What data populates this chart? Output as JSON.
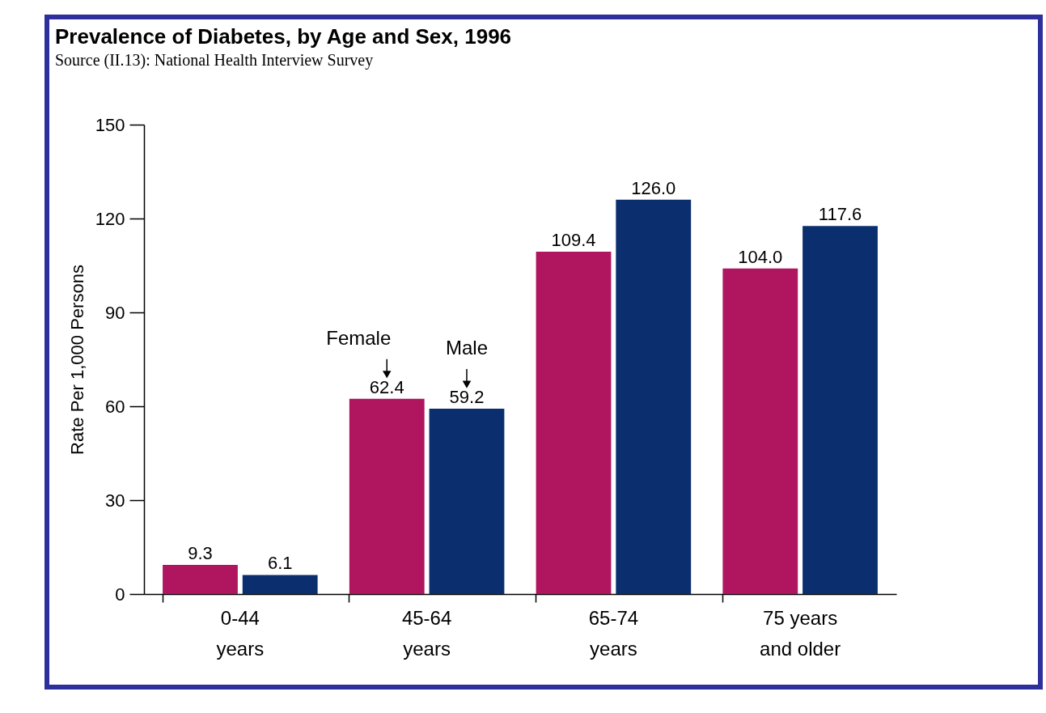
{
  "chart_data": {
    "type": "bar",
    "title": "Prevalence of Diabetes, by Age and Sex, 1996",
    "subtitle": "Source (II.13): National Health Interview Survey",
    "ylabel": "Rate Per 1,000 Persons",
    "categories": [
      "0-44\nyears",
      "45-64\nyears",
      "65-74\nyears",
      "75 years\nand older"
    ],
    "series": [
      {
        "name": "Female",
        "color": "#b0155f",
        "values": [
          9.3,
          62.4,
          109.4,
          104.0
        ],
        "value_labels": [
          "9.3",
          "62.4",
          "109.4",
          "104.0"
        ]
      },
      {
        "name": "Male",
        "color": "#0b2f6e",
        "values": [
          6.1,
          59.2,
          126.0,
          117.6
        ],
        "value_labels": [
          "6.1",
          "59.2",
          "126.0",
          "117.6"
        ]
      }
    ],
    "ylim": [
      0,
      150
    ],
    "yticks": [
      0,
      30,
      60,
      90,
      120,
      150
    ],
    "grid": false,
    "legend": false
  }
}
